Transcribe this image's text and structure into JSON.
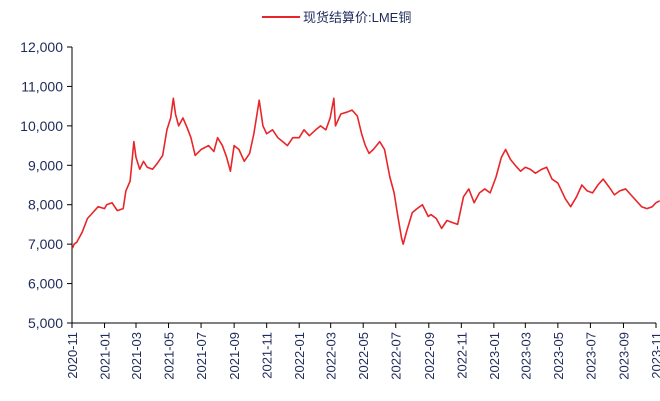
{
  "chart_data": {
    "type": "line",
    "title": "",
    "xlabel": "",
    "ylabel": "",
    "ylim": [
      5000,
      12000
    ],
    "y_ticks": [
      "5,000",
      "6,000",
      "7,000",
      "8,000",
      "9,000",
      "10,000",
      "11,000",
      "12,000"
    ],
    "x_ticks": [
      "2020-11",
      "2021-01",
      "2021-03",
      "2021-05",
      "2021-07",
      "2021-09",
      "2021-11",
      "2022-01",
      "2022-03",
      "2022-05",
      "2022-07",
      "2022-09",
      "2022-11",
      "2023-01",
      "2023-03",
      "2023-05",
      "2023-07",
      "2023-09",
      "2023-11"
    ],
    "grid": false,
    "legend_position": "top-center",
    "series": [
      {
        "name": "现货结算价:LME铜",
        "color": "#e8262a",
        "points": [
          [
            "2020-11-02",
            6900
          ],
          [
            "2020-11-05",
            7000
          ],
          [
            "2020-11-10",
            7050
          ],
          [
            "2020-11-20",
            7300
          ],
          [
            "2020-11-30",
            7650
          ],
          [
            "2020-12-10",
            7800
          ],
          [
            "2020-12-20",
            7950
          ],
          [
            "2021-01-01",
            7900
          ],
          [
            "2021-01-05",
            8000
          ],
          [
            "2021-01-15",
            8050
          ],
          [
            "2021-01-25",
            7850
          ],
          [
            "2021-02-05",
            7900
          ],
          [
            "2021-02-10",
            8350
          ],
          [
            "2021-02-18",
            8600
          ],
          [
            "2021-02-25",
            9600
          ],
          [
            "2021-03-01",
            9200
          ],
          [
            "2021-03-08",
            8900
          ],
          [
            "2021-03-15",
            9100
          ],
          [
            "2021-03-22",
            8950
          ],
          [
            "2021-04-01",
            8900
          ],
          [
            "2021-04-10",
            9050
          ],
          [
            "2021-04-20",
            9250
          ],
          [
            "2021-04-28",
            9900
          ],
          [
            "2021-05-05",
            10200
          ],
          [
            "2021-05-10",
            10700
          ],
          [
            "2021-05-14",
            10300
          ],
          [
            "2021-05-20",
            10000
          ],
          [
            "2021-05-28",
            10200
          ],
          [
            "2021-06-05",
            9950
          ],
          [
            "2021-06-12",
            9700
          ],
          [
            "2021-06-20",
            9250
          ],
          [
            "2021-07-01",
            9400
          ],
          [
            "2021-07-15",
            9500
          ],
          [
            "2021-07-25",
            9350
          ],
          [
            "2021-08-01",
            9700
          ],
          [
            "2021-08-10",
            9500
          ],
          [
            "2021-08-18",
            9200
          ],
          [
            "2021-08-25",
            8850
          ],
          [
            "2021-09-01",
            9500
          ],
          [
            "2021-09-10",
            9400
          ],
          [
            "2021-09-20",
            9100
          ],
          [
            "2021-09-30",
            9300
          ],
          [
            "2021-10-08",
            9800
          ],
          [
            "2021-10-18",
            10650
          ],
          [
            "2021-10-25",
            10000
          ],
          [
            "2021-11-01",
            9800
          ],
          [
            "2021-11-12",
            9900
          ],
          [
            "2021-11-22",
            9700
          ],
          [
            "2021-12-01",
            9600
          ],
          [
            "2021-12-10",
            9500
          ],
          [
            "2021-12-20",
            9700
          ],
          [
            "2022-01-01",
            9700
          ],
          [
            "2022-01-10",
            9900
          ],
          [
            "2022-01-20",
            9750
          ],
          [
            "2022-02-01",
            9900
          ],
          [
            "2022-02-10",
            10000
          ],
          [
            "2022-02-20",
            9900
          ],
          [
            "2022-02-28",
            10200
          ],
          [
            "2022-03-07",
            10700
          ],
          [
            "2022-03-10",
            10000
          ],
          [
            "2022-03-20",
            10300
          ],
          [
            "2022-04-01",
            10350
          ],
          [
            "2022-04-10",
            10400
          ],
          [
            "2022-04-20",
            10250
          ],
          [
            "2022-04-28",
            9800
          ],
          [
            "2022-05-05",
            9500
          ],
          [
            "2022-05-12",
            9300
          ],
          [
            "2022-05-20",
            9400
          ],
          [
            "2022-06-01",
            9600
          ],
          [
            "2022-06-10",
            9400
          ],
          [
            "2022-06-20",
            8700
          ],
          [
            "2022-06-28",
            8300
          ],
          [
            "2022-07-05",
            7700
          ],
          [
            "2022-07-12",
            7150
          ],
          [
            "2022-07-15",
            7000
          ],
          [
            "2022-07-22",
            7350
          ],
          [
            "2022-08-01",
            7800
          ],
          [
            "2022-08-10",
            7900
          ],
          [
            "2022-08-20",
            8000
          ],
          [
            "2022-08-31",
            7700
          ],
          [
            "2022-09-05",
            7750
          ],
          [
            "2022-09-15",
            7650
          ],
          [
            "2022-09-25",
            7400
          ],
          [
            "2022-10-05",
            7600
          ],
          [
            "2022-10-15",
            7550
          ],
          [
            "2022-10-25",
            7500
          ],
          [
            "2022-11-05",
            8200
          ],
          [
            "2022-11-15",
            8400
          ],
          [
            "2022-11-25",
            8050
          ],
          [
            "2022-12-05",
            8300
          ],
          [
            "2022-12-15",
            8400
          ],
          [
            "2022-12-25",
            8300
          ],
          [
            "2023-01-05",
            8700
          ],
          [
            "2023-01-15",
            9200
          ],
          [
            "2023-01-23",
            9400
          ],
          [
            "2023-02-01",
            9150
          ],
          [
            "2023-02-10",
            9000
          ],
          [
            "2023-02-20",
            8850
          ],
          [
            "2023-03-01",
            8950
          ],
          [
            "2023-03-10",
            8900
          ],
          [
            "2023-03-20",
            8800
          ],
          [
            "2023-04-01",
            8900
          ],
          [
            "2023-04-10",
            8950
          ],
          [
            "2023-04-20",
            8650
          ],
          [
            "2023-05-01",
            8550
          ],
          [
            "2023-05-15",
            8150
          ],
          [
            "2023-05-25",
            7950
          ],
          [
            "2023-06-05",
            8200
          ],
          [
            "2023-06-15",
            8500
          ],
          [
            "2023-06-25",
            8350
          ],
          [
            "2023-07-05",
            8300
          ],
          [
            "2023-07-15",
            8500
          ],
          [
            "2023-07-25",
            8650
          ],
          [
            "2023-08-05",
            8450
          ],
          [
            "2023-08-15",
            8250
          ],
          [
            "2023-08-25",
            8350
          ],
          [
            "2023-09-05",
            8400
          ],
          [
            "2023-09-15",
            8250
          ],
          [
            "2023-09-25",
            8100
          ],
          [
            "2023-10-05",
            7950
          ],
          [
            "2023-10-15",
            7900
          ],
          [
            "2023-10-25",
            7950
          ],
          [
            "2023-11-01",
            8050
          ],
          [
            "2023-11-08",
            8100
          ]
        ]
      }
    ]
  }
}
